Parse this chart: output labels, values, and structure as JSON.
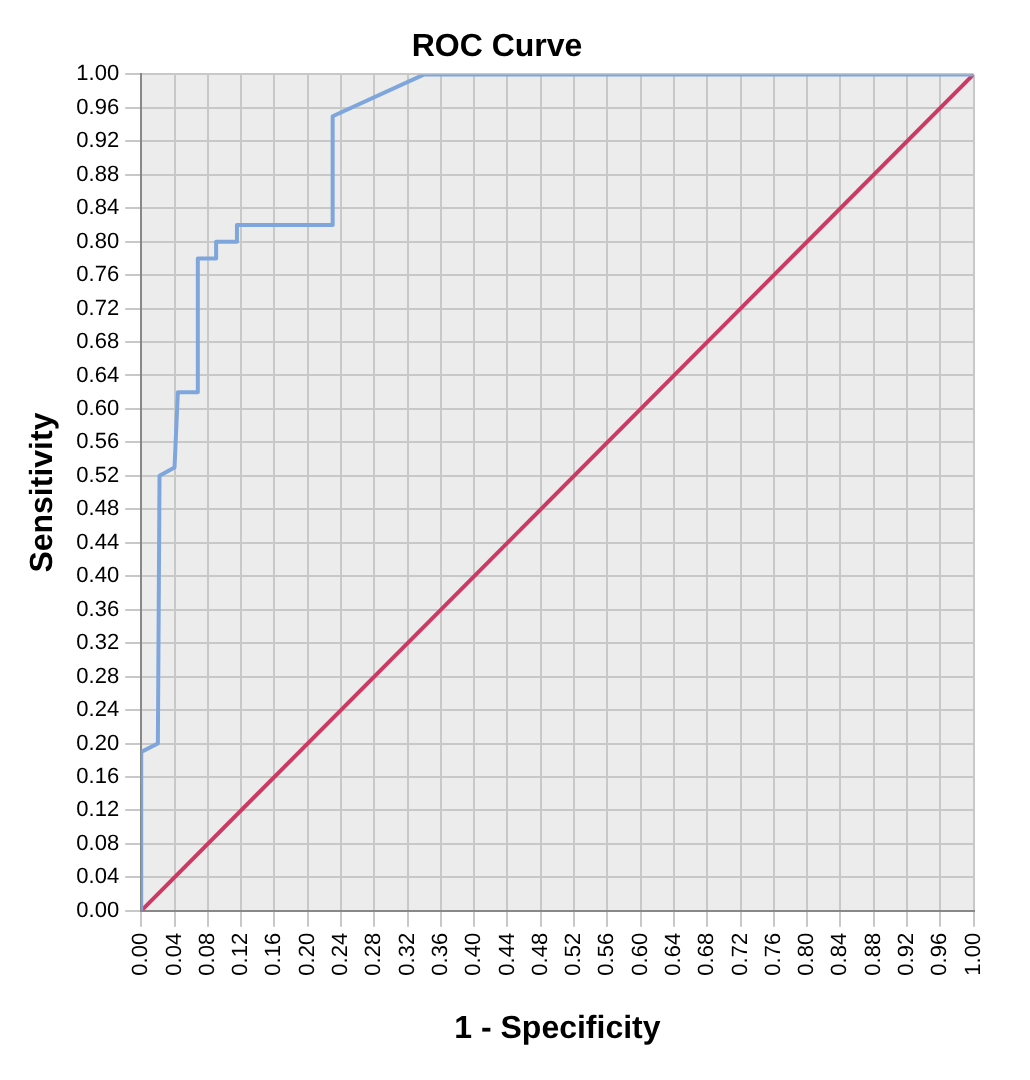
{
  "chart_data": {
    "type": "line",
    "title": "ROC Curve",
    "xlabel": "1 - Specificity",
    "ylabel": "Sensitivity",
    "series": [
      {
        "color": "#7ea6dc",
        "x": [
          0,
          0,
          0.02,
          0.022,
          0.04,
          0.044,
          0.068,
          0.068,
          0.09,
          0.09,
          0.115,
          0.115,
          0.23,
          0.23,
          0.34,
          1
        ],
        "values": [
          0,
          0.19,
          0.2,
          0.52,
          0.53,
          0.62,
          0.62,
          0.78,
          0.78,
          0.8,
          0.8,
          0.82,
          0.82,
          0.95,
          1,
          1
        ]
      },
      {
        "color": "#cc3a64",
        "x": [
          0,
          1
        ],
        "values": [
          0,
          1
        ]
      }
    ],
    "xlim": [
      0,
      1
    ],
    "ylim": [
      0,
      1
    ],
    "xticks": [
      {
        "value": 0,
        "label": "0.00"
      },
      {
        "value": 0.04,
        "label": "0.04"
      },
      {
        "value": 0.08,
        "label": "0.08"
      },
      {
        "value": 0.12,
        "label": "0.12"
      },
      {
        "value": 0.16,
        "label": "0.16"
      },
      {
        "value": 0.2,
        "label": "0.20"
      },
      {
        "value": 0.24,
        "label": "0.24"
      },
      {
        "value": 0.28,
        "label": "0.28"
      },
      {
        "value": 0.32,
        "label": "0.32"
      },
      {
        "value": 0.36,
        "label": "0.36"
      },
      {
        "value": 0.4,
        "label": "0.40"
      },
      {
        "value": 0.44,
        "label": "0.44"
      },
      {
        "value": 0.48,
        "label": "0.48"
      },
      {
        "value": 0.52,
        "label": "0.52"
      },
      {
        "value": 0.56,
        "label": "0.56"
      },
      {
        "value": 0.6,
        "label": "0.60"
      },
      {
        "value": 0.64,
        "label": "0.64"
      },
      {
        "value": 0.68,
        "label": "0.68"
      },
      {
        "value": 0.72,
        "label": "0.72"
      },
      {
        "value": 0.76,
        "label": "0.76"
      },
      {
        "value": 0.8,
        "label": "0.80"
      },
      {
        "value": 0.84,
        "label": "0.84"
      },
      {
        "value": 0.88,
        "label": "0.88"
      },
      {
        "value": 0.92,
        "label": "0.92"
      },
      {
        "value": 0.96,
        "label": "0.96"
      },
      {
        "value": 1,
        "label": "1.00"
      }
    ],
    "yticks": [
      {
        "value": 0,
        "label": "0.00"
      },
      {
        "value": 0.04,
        "label": "0.04"
      },
      {
        "value": 0.08,
        "label": "0.08"
      },
      {
        "value": 0.12,
        "label": "0.12"
      },
      {
        "value": 0.16,
        "label": "0.16"
      },
      {
        "value": 0.2,
        "label": "0.20"
      },
      {
        "value": 0.24,
        "label": "0.24"
      },
      {
        "value": 0.28,
        "label": "0.28"
      },
      {
        "value": 0.32,
        "label": "0.32"
      },
      {
        "value": 0.36,
        "label": "0.36"
      },
      {
        "value": 0.4,
        "label": "0.40"
      },
      {
        "value": 0.44,
        "label": "0.44"
      },
      {
        "value": 0.48,
        "label": "0.48"
      },
      {
        "value": 0.52,
        "label": "0.52"
      },
      {
        "value": 0.56,
        "label": "0.56"
      },
      {
        "value": 0.6,
        "label": "0.60"
      },
      {
        "value": 0.64,
        "label": "0.64"
      },
      {
        "value": 0.68,
        "label": "0.68"
      },
      {
        "value": 0.72,
        "label": "0.72"
      },
      {
        "value": 0.76,
        "label": "0.76"
      },
      {
        "value": 0.8,
        "label": "0.80"
      },
      {
        "value": 0.84,
        "label": "0.84"
      },
      {
        "value": 0.88,
        "label": "0.88"
      },
      {
        "value": 0.92,
        "label": "0.92"
      },
      {
        "value": 0.96,
        "label": "0.96"
      },
      {
        "value": 1,
        "label": "1.00"
      }
    ],
    "grid": true,
    "legend": false,
    "marker": "none",
    "line_style": "solid"
  }
}
